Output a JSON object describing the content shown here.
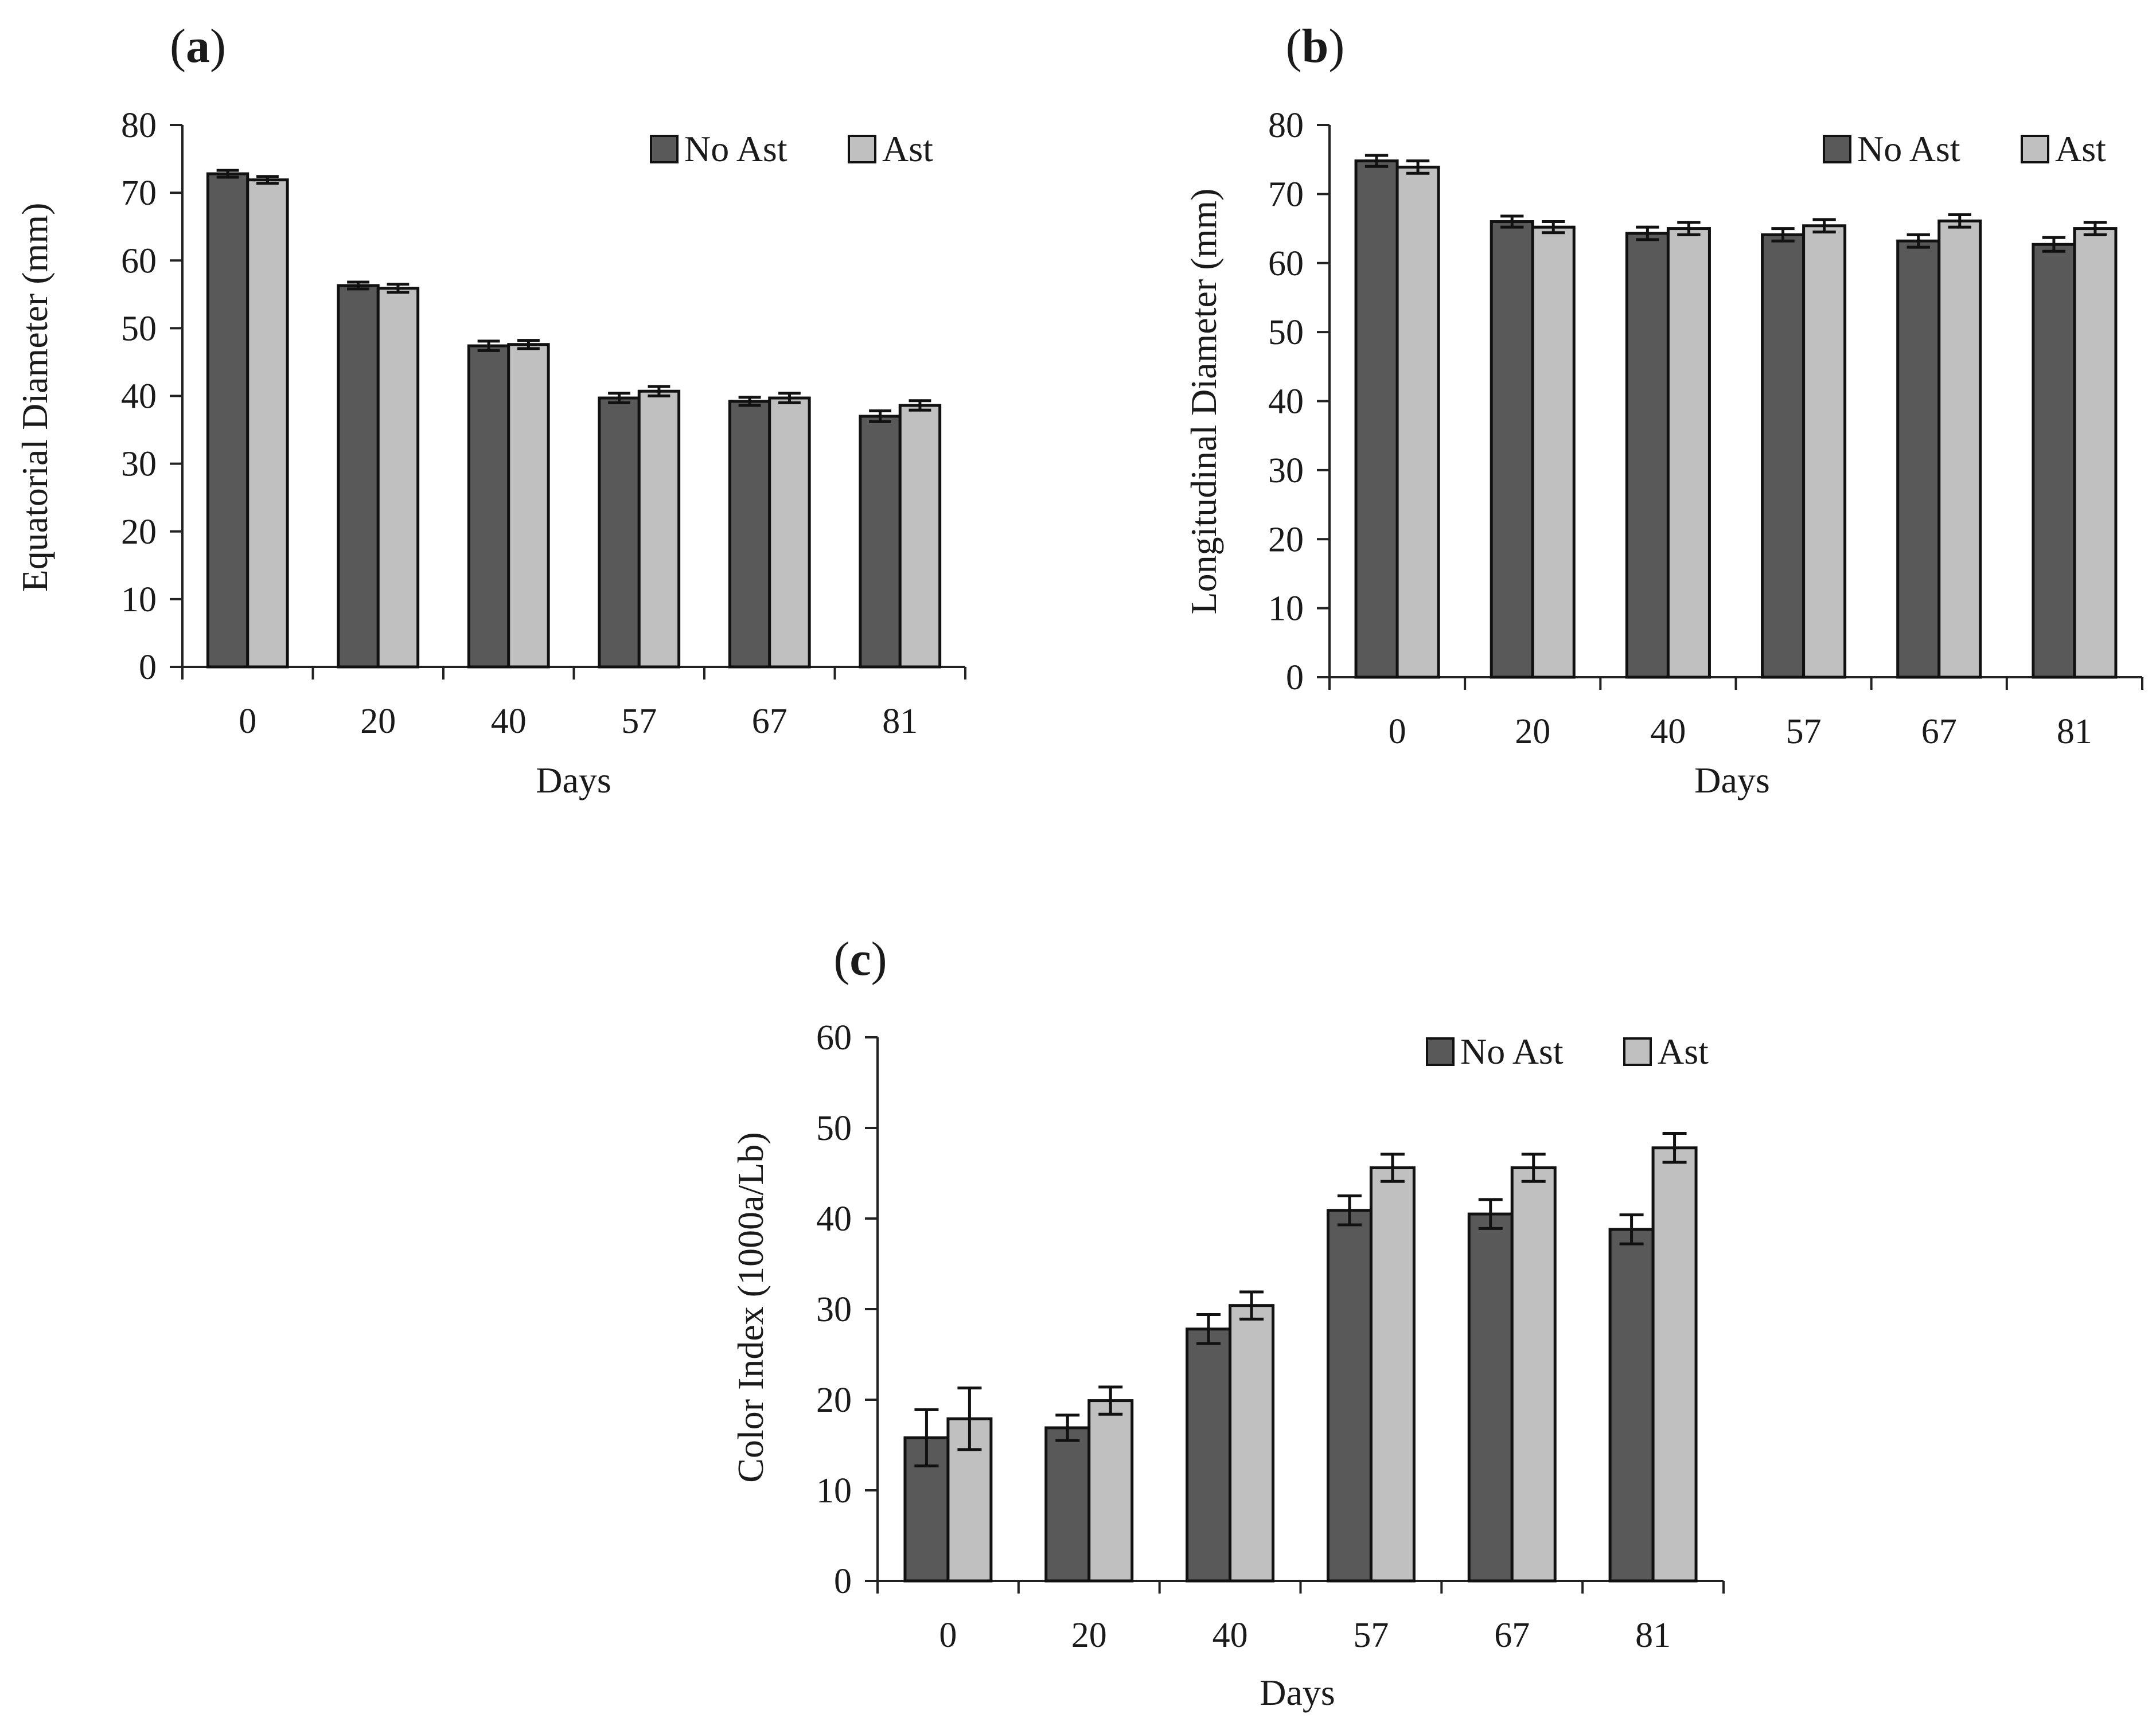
{
  "colors": {
    "no_ast": "#595959",
    "ast": "#c0c0c0",
    "axis": "#222222",
    "outline": "#111111"
  },
  "chart_data": [
    {
      "id": "a",
      "panel_label": "a",
      "type": "bar",
      "xlabel": "Days",
      "ylabel": "Equatorial Diameter (mm)",
      "ylim": [
        0,
        80
      ],
      "ytick_step": 10,
      "yticks": [
        "0",
        "10",
        "20",
        "30",
        "40",
        "50",
        "60",
        "70",
        "80"
      ],
      "legend_position": "top-right",
      "categories": [
        "0",
        "20",
        "40",
        "57",
        "67",
        "81"
      ],
      "series": [
        {
          "name": "No Ast",
          "values": [
            72.8,
            56.3,
            47.4,
            39.7,
            39.2,
            37.0
          ],
          "errors": [
            0.5,
            0.5,
            0.7,
            0.7,
            0.6,
            0.8
          ]
        },
        {
          "name": "Ast",
          "values": [
            71.9,
            55.9,
            47.6,
            40.7,
            39.7,
            38.6
          ],
          "errors": [
            0.5,
            0.6,
            0.6,
            0.7,
            0.7,
            0.7
          ]
        }
      ]
    },
    {
      "id": "b",
      "panel_label": "b",
      "type": "bar",
      "xlabel": "Days",
      "ylabel": "Longitudinal Diameter (mm)",
      "ylim": [
        0,
        80
      ],
      "ytick_step": 10,
      "yticks": [
        "0",
        "10",
        "20",
        "30",
        "40",
        "50",
        "60",
        "70",
        "80"
      ],
      "legend_position": "top-right",
      "categories": [
        "0",
        "20",
        "40",
        "57",
        "67",
        "81"
      ],
      "series": [
        {
          "name": "No Ast",
          "values": [
            74.8,
            66.0,
            64.3,
            64.1,
            63.2,
            62.7
          ],
          "errors": [
            0.8,
            0.8,
            0.9,
            0.9,
            0.9,
            1.0
          ]
        },
        {
          "name": "Ast",
          "values": [
            73.9,
            65.2,
            65.0,
            65.4,
            66.1,
            65.0
          ],
          "errors": [
            0.9,
            0.8,
            0.9,
            0.9,
            0.9,
            0.9
          ]
        }
      ]
    },
    {
      "id": "c",
      "panel_label": "c",
      "type": "bar",
      "xlabel": "Days",
      "ylabel": "Color Index (1000a/Lb)",
      "ylim": [
        0,
        60
      ],
      "ytick_step": 10,
      "yticks": [
        "0",
        "10",
        "20",
        "30",
        "40",
        "50",
        "60"
      ],
      "legend_position": "top-right",
      "categories": [
        "0",
        "20",
        "40",
        "57",
        "67",
        "81"
      ],
      "series": [
        {
          "name": "No Ast",
          "values": [
            15.8,
            16.9,
            27.8,
            40.9,
            40.5,
            38.8
          ],
          "errors": [
            3.1,
            1.4,
            1.6,
            1.6,
            1.6,
            1.6
          ]
        },
        {
          "name": "Ast",
          "values": [
            17.9,
            19.9,
            30.4,
            45.6,
            45.6,
            47.8
          ],
          "errors": [
            3.4,
            1.5,
            1.5,
            1.5,
            1.5,
            1.6
          ]
        }
      ]
    }
  ]
}
